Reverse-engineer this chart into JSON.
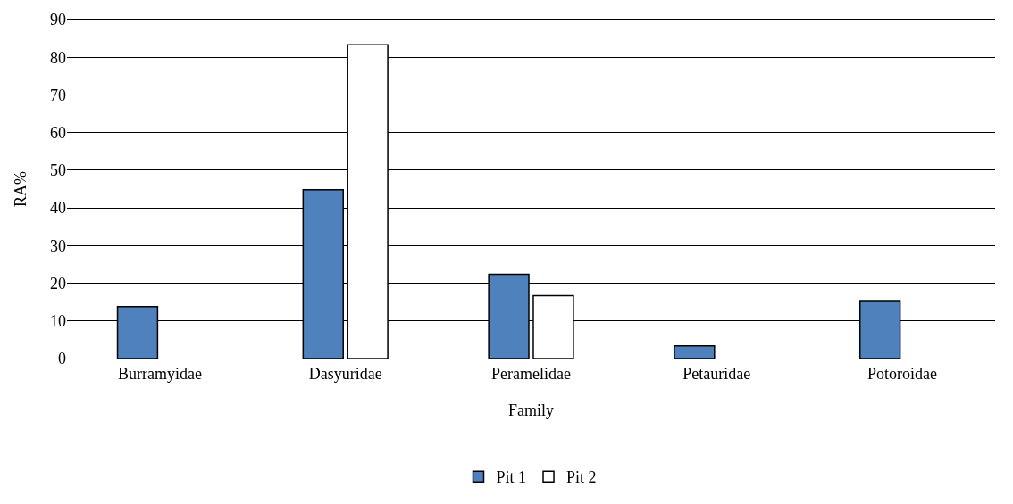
{
  "chart_data": {
    "type": "bar",
    "xlabel": "Family",
    "ylabel": "RA%",
    "categories": [
      "Burramyidae",
      "Dasyuridae",
      "Peramelidae",
      "Petauridae",
      "Potoroidae"
    ],
    "series": [
      {
        "name": "Pit 1",
        "color": "#4f81bd",
        "values": [
          13.8,
          44.8,
          22.4,
          3.4,
          15.4
        ]
      },
      {
        "name": "Pit 2",
        "color": "#ffffff",
        "values": [
          null,
          83.3,
          16.7,
          null,
          null
        ]
      }
    ],
    "ylim": [
      0,
      90
    ],
    "yticks": [
      0,
      10,
      20,
      30,
      40,
      50,
      60,
      70,
      80,
      90
    ],
    "grid": "y",
    "legend": "bottom"
  }
}
